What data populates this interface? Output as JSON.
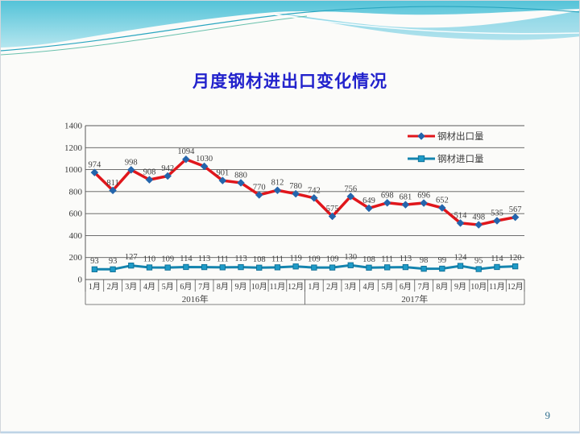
{
  "slide": {
    "title": "月度钢材进出口变化情况",
    "page_number": "9"
  },
  "chart_data": {
    "type": "line",
    "title": "",
    "xlabel": "",
    "ylabel": "",
    "ylim": [
      0,
      1400
    ],
    "ytick_step": 200,
    "grid": true,
    "legend_position": "top-right-inside",
    "categories": [
      "1月",
      "2月",
      "3月",
      "4月",
      "5月",
      "6月",
      "7月",
      "8月",
      "9月",
      "10月",
      "11月",
      "12月",
      "1月",
      "2月",
      "3月",
      "4月",
      "5月",
      "6月",
      "7月",
      "8月",
      "9月",
      "10月",
      "11月",
      "12月"
    ],
    "category_groups": [
      {
        "label": "2016年",
        "span": 12
      },
      {
        "label": "2017年",
        "span": 12
      }
    ],
    "series": [
      {
        "name": "钢材出口量",
        "line_color": "#e0161b",
        "marker": "diamond",
        "marker_color": "#2465ac",
        "marker_stroke": "#2465ac",
        "values": [
          974,
          811,
          998,
          908,
          942,
          1094,
          1030,
          901,
          880,
          770,
          812,
          780,
          742,
          575,
          756,
          649,
          698,
          681,
          696,
          652,
          514,
          498,
          535,
          567
        ]
      },
      {
        "name": "钢材进口量",
        "line_color": "#1484ae",
        "marker": "square",
        "marker_color": "#1e9bc8",
        "marker_stroke": "#0e6e94",
        "values": [
          93,
          93,
          127,
          110,
          109,
          114,
          113,
          111,
          113,
          108,
          111,
          119,
          109,
          109,
          130,
          108,
          111,
          113,
          98,
          99,
          124,
          95,
          114,
          120
        ]
      }
    ],
    "colors": {
      "gridline": "#595959",
      "axis_text": "#3a3a3a",
      "data_label": "#404040"
    }
  }
}
